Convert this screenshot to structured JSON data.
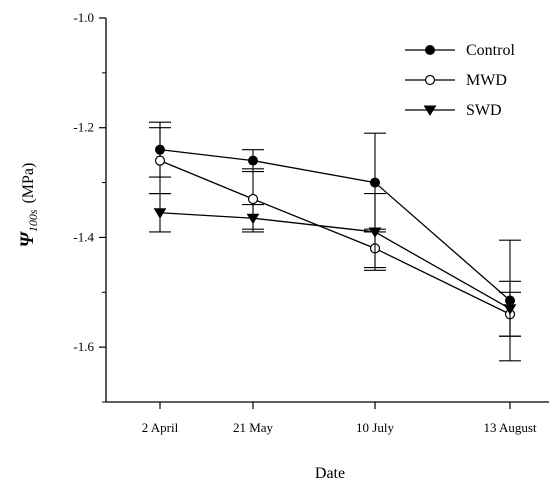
{
  "chart_data": {
    "type": "line",
    "categories": [
      "2 April",
      "21 May",
      "10 July",
      "13 August"
    ],
    "xlabel": "Date",
    "ylabel": {
      "symbol": "Ψ",
      "subscript": "100s",
      "unit": "(MPa)"
    },
    "ylim": [
      -1.7,
      -1.0
    ],
    "yticks": [
      -1.0,
      -1.2,
      -1.4,
      -1.6
    ],
    "ytick_labels": [
      "-1.0",
      "-1.2",
      "-1.4",
      "-1.6"
    ],
    "grid": false,
    "legend_position": "top-right",
    "series": [
      {
        "name": "Control",
        "marker": "filled-circle",
        "color": "#000000",
        "values": [
          -1.24,
          -1.26,
          -1.3,
          -1.515
        ],
        "errors": [
          0.05,
          0.02,
          0.09,
          0.11
        ]
      },
      {
        "name": "MWD",
        "marker": "open-circle",
        "color": "#000000",
        "values": [
          -1.26,
          -1.33,
          -1.42,
          -1.54
        ],
        "errors": [
          0.06,
          0.055,
          0.035,
          0.04
        ]
      },
      {
        "name": "SWD",
        "marker": "filled-triangle-down",
        "color": "#000000",
        "values": [
          -1.355,
          -1.365,
          -1.39,
          -1.53
        ],
        "errors": [
          0.035,
          0.025,
          0.07,
          0.05
        ]
      }
    ]
  }
}
